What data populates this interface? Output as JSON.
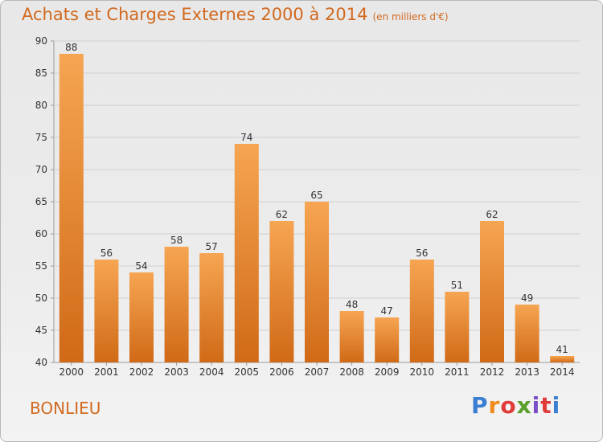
{
  "header": {
    "title": "Achats et Charges Externes 2000 à 2014",
    "unit": "(en milliers d'€)"
  },
  "footer": {
    "commune": "BONLIEU",
    "logo_letters": [
      "P",
      "r",
      "o",
      "x",
      "i",
      "t",
      "i"
    ],
    "logo_colors": [
      "#3a7fd1",
      "#f08a1c",
      "#e03a3a",
      "#5aa02c",
      "#7a4fc6",
      "#e03a3a",
      "#3a7fd1"
    ]
  },
  "chart_data": {
    "type": "bar",
    "categories": [
      "2000",
      "2001",
      "2002",
      "2003",
      "2004",
      "2005",
      "2006",
      "2007",
      "2008",
      "2009",
      "2010",
      "2011",
      "2012",
      "2013",
      "2014"
    ],
    "values": [
      88,
      56,
      54,
      58,
      57,
      74,
      62,
      65,
      48,
      47,
      56,
      51,
      62,
      49,
      41
    ],
    "ylim": [
      40,
      90
    ],
    "yticks": [
      40,
      45,
      50,
      55,
      60,
      65,
      70,
      75,
      80,
      85,
      90
    ],
    "grid": true,
    "colors": {
      "bar_top": "#f6a552",
      "bar_bottom": "#d06a17",
      "grid": "#cfcfcf",
      "axis_text": "#333333"
    }
  }
}
